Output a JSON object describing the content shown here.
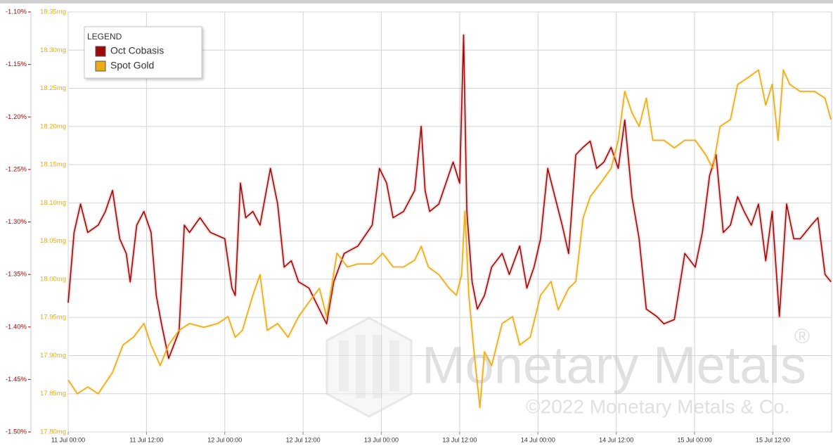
{
  "chart_data": {
    "type": "line",
    "legend_title": "LEGEND",
    "legend": "top-left",
    "grid": true,
    "watermark": {
      "brand": "Monetary Metals",
      "registered": "®",
      "copyright": "©2022 Monetary Metals & Co."
    },
    "xlim": [
      0,
      117
    ],
    "xticks": [
      {
        "value": 0,
        "label": "11 Jul 00:00"
      },
      {
        "value": 12,
        "label": "11 Jul 12:00"
      },
      {
        "value": 24,
        "label": "12 Jul 00:00"
      },
      {
        "value": 36,
        "label": "12 Jul 12:00"
      },
      {
        "value": 48,
        "label": "13 Jul 00:00"
      },
      {
        "value": 60,
        "label": "13 Jul 12:00"
      },
      {
        "value": 72,
        "label": "14 Jul 00:00"
      },
      {
        "value": 84,
        "label": "14 Jul 12:00"
      },
      {
        "value": 96,
        "label": "15 Jul 00:00"
      },
      {
        "value": 108,
        "label": "15 Jul 12:00"
      }
    ],
    "ylim": [
      -1.5,
      -1.1
    ],
    "yticks": [
      {
        "value": -1.5,
        "label": "-1.50%"
      },
      {
        "value": -1.45,
        "label": "-1.45%"
      },
      {
        "value": -1.4,
        "label": "-1.40%"
      },
      {
        "value": -1.35,
        "label": "-1.35%"
      },
      {
        "value": -1.3,
        "label": "-1.30%"
      },
      {
        "value": -1.25,
        "label": "-1.25%"
      },
      {
        "value": -1.2,
        "label": "-1.20%"
      },
      {
        "value": -1.15,
        "label": "-1.15%"
      },
      {
        "value": -1.1,
        "label": "-1.10%"
      }
    ],
    "y2lim": [
      17.8,
      18.35
    ],
    "y2ticks": [
      {
        "value": 17.8,
        "label": "17.80mg"
      },
      {
        "value": 17.85,
        "label": "17.85mg"
      },
      {
        "value": 17.9,
        "label": "17.90mg"
      },
      {
        "value": 17.95,
        "label": "17.95mg"
      },
      {
        "value": 18.0,
        "label": "18.00mg"
      },
      {
        "value": 18.05,
        "label": "18.05mg"
      },
      {
        "value": 18.1,
        "label": "18.10mg"
      },
      {
        "value": 18.15,
        "label": "18.15mg"
      },
      {
        "value": 18.2,
        "label": "18.20mg"
      },
      {
        "value": 18.25,
        "label": "18.25mg"
      },
      {
        "value": 18.3,
        "label": "18.30mg"
      },
      {
        "value": 18.35,
        "label": "18.35mg"
      }
    ],
    "series": [
      {
        "name": "Oct Cobasis",
        "color": "#9b0a0a",
        "axis": "y",
        "x": [
          0,
          0.9,
          1.9,
          3.0,
          4.6,
          5.7,
          6.8,
          7.9,
          8.9,
          9.5,
          10.5,
          11.6,
          12.7,
          13.5,
          14.3,
          15.4,
          16.2,
          17.0,
          17.8,
          18.6,
          20.2,
          21.8,
          24.0,
          25.1,
          25.6,
          26.4,
          27.2,
          28.3,
          29.4,
          31.0,
          32.1,
          33.1,
          34.2,
          35.3,
          36.9,
          38.0,
          39.6,
          40.7,
          42.3,
          44.4,
          46.6,
          47.7,
          48.8,
          49.8,
          51.4,
          53.1,
          54.1,
          54.7,
          55.4,
          56.8,
          57.9,
          59.0,
          60.0,
          60.6,
          61.1,
          61.9,
          62.7,
          63.8,
          64.9,
          66.5,
          67.6,
          69.2,
          70.3,
          71.4,
          72.4,
          73.5,
          74.6,
          75.7,
          76.7,
          77.8,
          78.9,
          80.0,
          81.0,
          82.1,
          83.2,
          84.3,
          85.3,
          86.4,
          87.5,
          88.6,
          90.2,
          91.3,
          92.9,
          94.5,
          96.1,
          97.2,
          98.3,
          99.3,
          100.4,
          101.5,
          102.6,
          103.6,
          104.7,
          105.8,
          106.9,
          107.9,
          109.0,
          110.1,
          111.2,
          112.2,
          113.9,
          114.9,
          116.0,
          116.9
        ],
        "values": [
          -1.377,
          -1.31,
          -1.283,
          -1.31,
          -1.303,
          -1.29,
          -1.27,
          -1.316,
          -1.33,
          -1.357,
          -1.303,
          -1.29,
          -1.31,
          -1.37,
          -1.397,
          -1.43,
          -1.417,
          -1.404,
          -1.303,
          -1.31,
          -1.296,
          -1.31,
          -1.316,
          -1.363,
          -1.37,
          -1.263,
          -1.296,
          -1.29,
          -1.303,
          -1.249,
          -1.283,
          -1.343,
          -1.337,
          -1.357,
          -1.363,
          -1.377,
          -1.397,
          -1.357,
          -1.33,
          -1.323,
          -1.303,
          -1.249,
          -1.263,
          -1.296,
          -1.29,
          -1.27,
          -1.209,
          -1.27,
          -1.29,
          -1.283,
          -1.263,
          -1.243,
          -1.263,
          -1.122,
          -1.29,
          -1.357,
          -1.383,
          -1.37,
          -1.343,
          -1.33,
          -1.35,
          -1.323,
          -1.363,
          -1.343,
          -1.316,
          -1.249,
          -1.276,
          -1.303,
          -1.33,
          -1.236,
          -1.229,
          -1.223,
          -1.249,
          -1.243,
          -1.229,
          -1.249,
          -1.203,
          -1.276,
          -1.316,
          -1.383,
          -1.39,
          -1.397,
          -1.393,
          -1.33,
          -1.343,
          -1.31,
          -1.256,
          -1.236,
          -1.31,
          -1.303,
          -1.276,
          -1.29,
          -1.303,
          -1.283,
          -1.337,
          -1.29,
          -1.39,
          -1.283,
          -1.316,
          -1.316,
          -1.303,
          -1.296,
          -1.35,
          -1.357
        ]
      },
      {
        "name": "Spot Gold",
        "color": "#e8ac14",
        "axis": "y2",
        "x": [
          0,
          1.4,
          3.0,
          4.6,
          6.8,
          8.4,
          10.0,
          11.6,
          12.7,
          14.1,
          15.4,
          17.0,
          18.6,
          20.8,
          22.9,
          24.5,
          25.6,
          26.7,
          28.3,
          29.4,
          30.5,
          32.1,
          33.7,
          35.3,
          36.9,
          38.5,
          39.6,
          41.2,
          42.8,
          44.4,
          46.6,
          48.2,
          49.8,
          51.4,
          53.1,
          54.1,
          55.2,
          56.8,
          58.4,
          59.5,
          60.3,
          60.8,
          61.4,
          62.2,
          63.1,
          63.8,
          64.9,
          66.5,
          68.1,
          69.2,
          70.8,
          72.4,
          74.0,
          75.1,
          76.7,
          77.8,
          78.9,
          80.0,
          81.6,
          83.2,
          84.3,
          85.3,
          86.4,
          87.5,
          88.6,
          89.6,
          91.3,
          92.9,
          94.5,
          96.1,
          97.7,
          98.8,
          99.9,
          101.5,
          102.6,
          104.2,
          105.8,
          106.9,
          107.9,
          108.8,
          109.6,
          110.6,
          112.2,
          114.4,
          116.0,
          116.9
        ],
        "values": [
          17.868,
          17.85,
          17.859,
          17.85,
          17.878,
          17.914,
          17.924,
          17.942,
          17.914,
          17.887,
          17.914,
          17.933,
          17.942,
          17.937,
          17.942,
          17.951,
          17.924,
          17.933,
          17.979,
          18.006,
          17.933,
          17.942,
          17.924,
          17.951,
          17.97,
          17.988,
          17.951,
          18.034,
          18.016,
          18.02,
          18.02,
          18.034,
          18.016,
          18.016,
          18.025,
          18.043,
          18.016,
          18.006,
          17.988,
          17.979,
          18.006,
          18.089,
          17.979,
          17.905,
          17.832,
          17.905,
          17.887,
          17.942,
          17.951,
          17.914,
          17.924,
          17.979,
          17.997,
          17.96,
          17.988,
          17.997,
          18.08,
          18.108,
          18.126,
          18.145,
          18.182,
          18.246,
          18.218,
          18.2,
          18.237,
          18.182,
          18.182,
          18.172,
          18.182,
          18.182,
          18.163,
          18.145,
          18.2,
          18.209,
          18.255,
          18.264,
          18.274,
          18.228,
          18.255,
          18.182,
          18.274,
          18.255,
          18.246,
          18.246,
          18.237,
          18.209
        ]
      }
    ]
  }
}
